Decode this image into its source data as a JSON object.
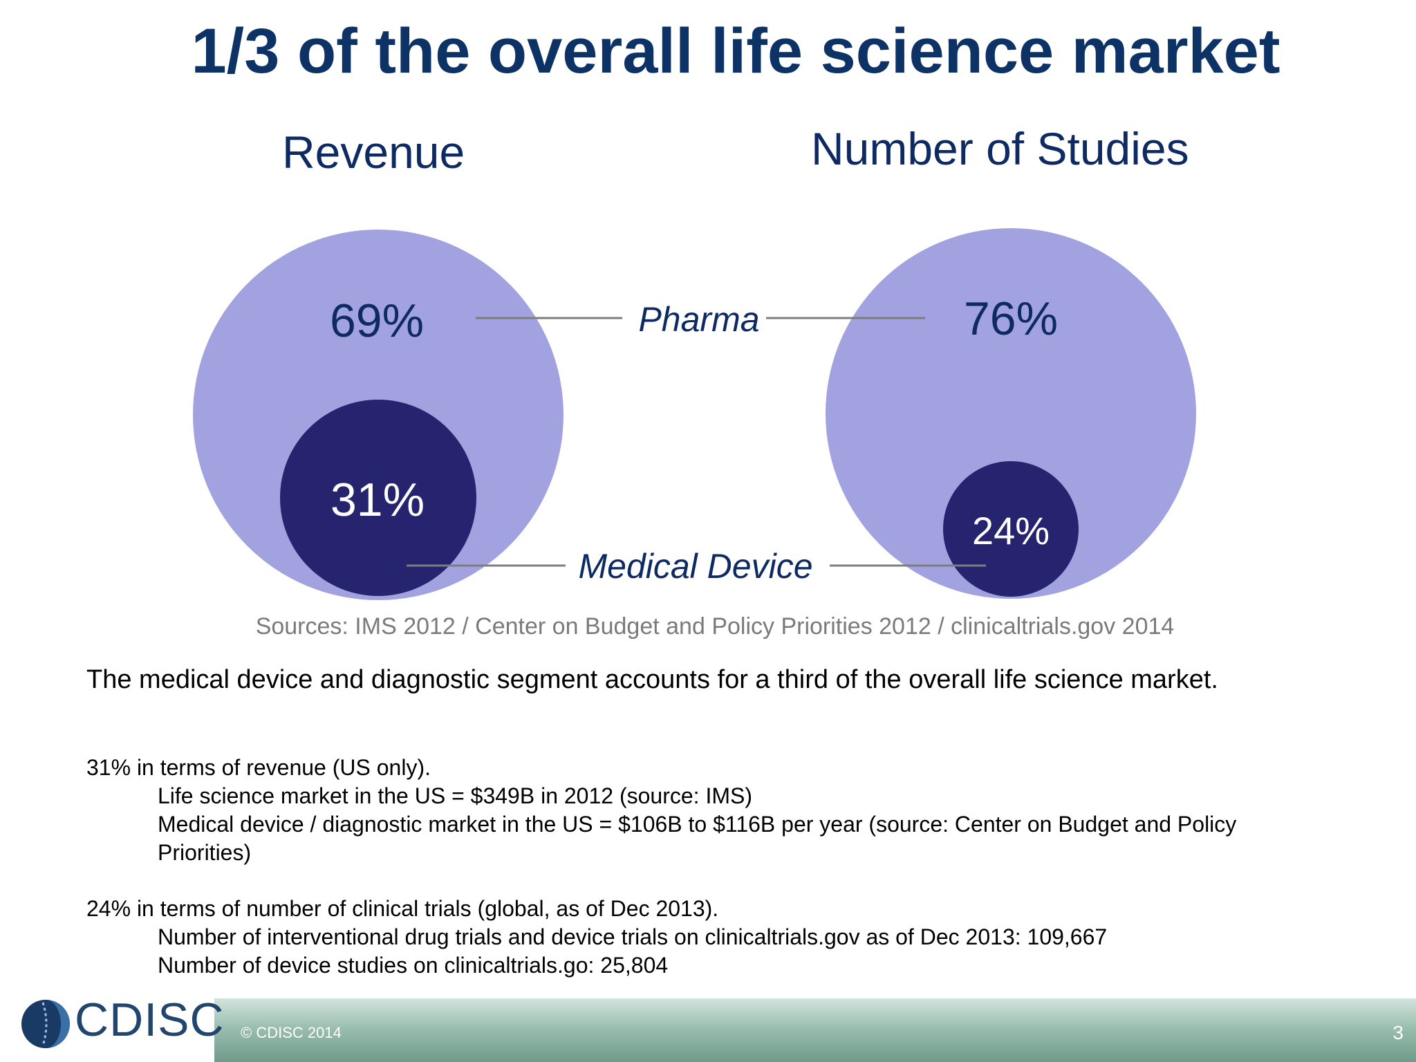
{
  "title": "1/3 of the overall life science market",
  "revenue": {
    "heading": "Revenue",
    "outer_label": "69%",
    "inner_label": "31%"
  },
  "studies": {
    "heading": "Number of Studies",
    "outer_label": "76%",
    "inner_label": "24%"
  },
  "callouts": {
    "pharma": "Pharma",
    "device": "Medical Device"
  },
  "sources": "Sources: IMS 2012  / Center on Budget and Policy Priorities  2012 / clinicaltrials.gov 2014",
  "summary": "The medical device and diagnostic segment accounts for a third of the overall life science market.",
  "revenue_block": {
    "lead": "31% in terms of revenue (US only).",
    "lines": [
      "Life science market in the US = $349B in 2012 (source: IMS)",
      "Medical device / diagnostic market in the US = $106B to $116B per year (source: Center on Budget and Policy",
      "Priorities)"
    ]
  },
  "trials_block": {
    "lead": "24% in terms of number of clinical trials (global, as of Dec 2013).",
    "lines": [
      "Number of interventional drug trials and device trials on clinicaltrials.gov as of Dec 2013: 109,667",
      "Number of device studies on clinicaltrials.go: 25,804"
    ]
  },
  "footer": {
    "copyright": "© CDISC 2014",
    "page_number": "3",
    "logo_text": "CDISC"
  },
  "colors": {
    "pharma": "#a3a2e0",
    "device": "#26246e",
    "title": "#0c3266",
    "text_dark": "#0d2a62"
  }
}
